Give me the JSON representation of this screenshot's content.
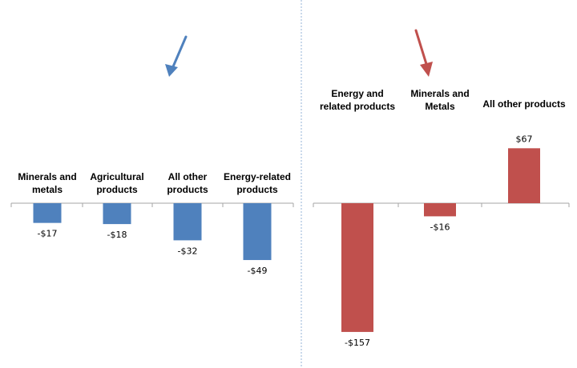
{
  "chart_data": [
    {
      "type": "bar",
      "title": "",
      "categories": [
        [
          "Minerals and",
          "metals"
        ],
        [
          "Agricultural",
          "products"
        ],
        [
          "All other",
          "products"
        ],
        [
          "Energy-related",
          "products"
        ]
      ],
      "values": [
        -17,
        -18,
        -32,
        -49
      ],
      "value_labels": [
        "-$17",
        "-$18",
        "-$32",
        "-$49"
      ],
      "color": "#4F81BD",
      "arrow": "down",
      "arrow_color": "#4F81BD",
      "category_label_position": "above-axis",
      "grid": false
    },
    {
      "type": "bar",
      "title": "",
      "categories": [
        [
          "Energy and",
          "related products"
        ],
        [
          "Minerals and",
          "Metals"
        ],
        [
          "All other products"
        ]
      ],
      "values": [
        -157,
        -16,
        67
      ],
      "value_labels": [
        "-$157",
        "-$16",
        "$67"
      ],
      "color": "#C0504D",
      "arrow": "down",
      "arrow_color": "#C0504D",
      "category_label_position": "top",
      "grid": false
    }
  ],
  "divider_color": "#95B3D7",
  "axis_color": "#A6A6A6"
}
